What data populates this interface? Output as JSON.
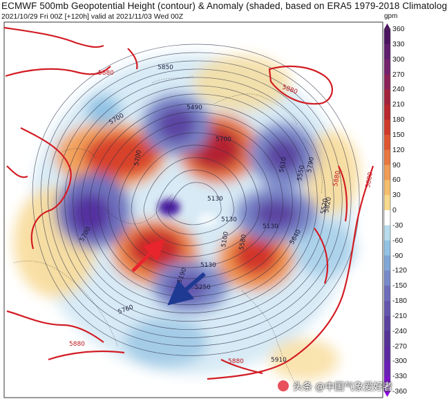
{
  "header": {
    "title": "ECMWF 500mb Geopotential Height (contour) & Anomaly (shaded, based on ERA5 1979-2018 Climatolog",
    "subtitle": "2021/10/29 Fri 00Z [+120h] valid at 2021/11/03 Wed 00Z",
    "units": "gpm"
  },
  "colorbar": {
    "ticks": [
      "360",
      "330",
      "300",
      "270",
      "240",
      "210",
      "180",
      "150",
      "120",
      "90",
      "60",
      "30",
      "0",
      "-30",
      "-60",
      "-90",
      "-120",
      "-150",
      "-180",
      "-210",
      "-240",
      "-270",
      "-300",
      "-330",
      "-360"
    ],
    "colors": [
      "#4b1460",
      "#5e1d6e",
      "#74226e",
      "#8a2358",
      "#a1243c",
      "#b9262d",
      "#cf3a2a",
      "#de5530",
      "#e87840",
      "#f09c55",
      "#f5be6e",
      "#f8da8e",
      "#ffffff",
      "#b8dcee",
      "#92c3e4",
      "#7fa7d8",
      "#7889c9",
      "#6e6dbb",
      "#6456ad",
      "#5a429f",
      "#553496",
      "#5c2aa0",
      "#6a1fb5",
      "#7a12cc",
      "#8a05e0"
    ]
  },
  "map": {
    "contour_labels": [
      "5880",
      "5880",
      "5880",
      "5880",
      "5880",
      "5880",
      "5850",
      "5790",
      "5700",
      "5700",
      "5700",
      "5700",
      "5490",
      "5610",
      "5550",
      "5520",
      "5640",
      "5130",
      "5130",
      "5130",
      "5130",
      "5100",
      "5190",
      "5250",
      "5580",
      "5760",
      "5910",
      "5820"
    ],
    "anomaly_centers": [
      {
        "sign": "positive",
        "label": "ridge-siberia"
      },
      {
        "sign": "positive",
        "label": "ridge-canada"
      },
      {
        "sign": "positive",
        "label": "ridge-europe"
      },
      {
        "sign": "positive",
        "label": "ridge-east-asia"
      },
      {
        "sign": "negative",
        "label": "trough-alaska"
      },
      {
        "sign": "negative",
        "label": "trough-scandinavia"
      },
      {
        "sign": "negative",
        "label": "trough-north-atlantic"
      },
      {
        "sign": "negative",
        "label": "trough-hudson"
      }
    ],
    "arrows": [
      {
        "color": "#e8242c",
        "label": "red-arrow"
      },
      {
        "color": "#1f3a93",
        "label": "blue-arrow"
      }
    ]
  },
  "watermark": {
    "text": "头条 @中国气象爱好者"
  }
}
